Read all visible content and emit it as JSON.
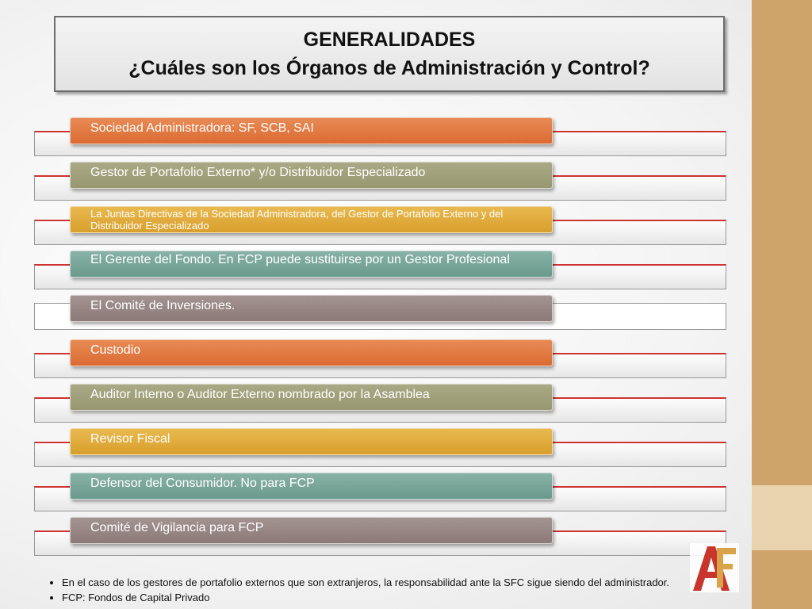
{
  "title": {
    "line1": "GENERALIDADES",
    "line2": "¿Cuáles son los Órganos de Administración y Control?"
  },
  "items": [
    {
      "label": "Sociedad Administradora: SF, SCB, SAI",
      "color": "#de7540"
    },
    {
      "label": "Gestor  de Portafolio Externo*  y/o Distribuidor Especializado",
      "color": "#a0a07b"
    },
    {
      "label": "La Juntas Directivas de la Sociedad Administradora, del Gestor de Portafolio Externo y del Distribuidor Especializado",
      "color": "#dfab3b"
    },
    {
      "label": "El Gerente del  Fondo.  En FCP puede  sustituirse por un  Gestor Profesional",
      "color": "#78a598"
    },
    {
      "label": "El Comité de Inversiones.",
      "color": "#958583"
    },
    {
      "label": "Custodio",
      "color": "#de7540"
    },
    {
      "label": "Auditor Interno  o Auditor Externo nombrado por la Asamblea",
      "color": "#a0a07b"
    },
    {
      "label": "Revisor Fiscal",
      "color": "#dfab3b"
    },
    {
      "label": "Defensor del Consumidor.  No para FCP",
      "color": "#78a598"
    },
    {
      "label": "Comité de Vigilancia para FCP",
      "color": "#958583"
    }
  ],
  "notes": [
    "En el caso de los gestores de portafolio externos que son extranjeros, la responsabilidad ante la SFC  sigue siendo del administrador.",
    "FCP: Fondos de Capital Privado"
  ],
  "logo": {
    "icon": "af-logo-icon",
    "color": "#c8352c"
  }
}
